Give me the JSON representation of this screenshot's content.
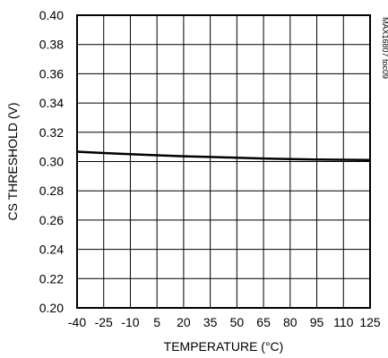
{
  "chart_data": {
    "type": "line",
    "title": "",
    "xlabel": "TEMPERATURE (°C)",
    "ylabel": "CS THRESHOLD (V)",
    "side_label": "MAX16807 toc09",
    "xlim": [
      -40,
      125
    ],
    "ylim": [
      0.2,
      0.4
    ],
    "x_ticks": [
      "-40",
      "-25",
      "-10",
      "5",
      "20",
      "35",
      "50",
      "65",
      "80",
      "95",
      "110",
      "125"
    ],
    "y_ticks": [
      "0.40",
      "0.38",
      "0.36",
      "0.34",
      "0.32",
      "0.30",
      "0.28",
      "0.26",
      "0.24",
      "0.22",
      "0.20"
    ],
    "grid": true,
    "series": [
      {
        "x": [
          -40,
          -25,
          -10,
          5,
          20,
          35,
          50,
          65,
          80,
          95,
          110,
          125
        ],
        "y": [
          0.3067,
          0.3058,
          0.305,
          0.3043,
          0.3036,
          0.3031,
          0.3026,
          0.3021,
          0.3017,
          0.3014,
          0.3012,
          0.3011
        ],
        "color": "#000000"
      }
    ]
  }
}
